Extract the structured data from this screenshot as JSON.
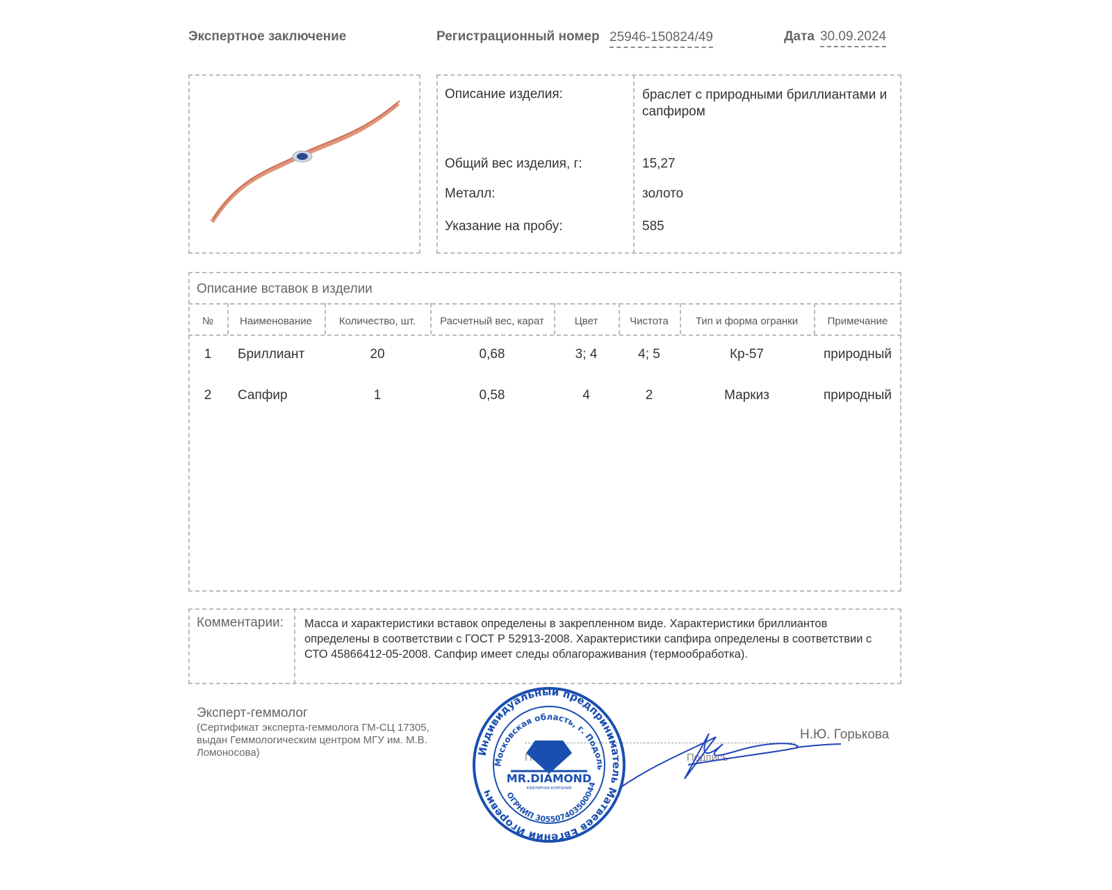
{
  "header": {
    "title": "Экспертное заключение",
    "reg_label": "Регистрационный номер",
    "reg_value": "25946-150824/49",
    "date_label": "Дата",
    "date_value": "30.09.2024"
  },
  "item": {
    "description_label": "Описание изделия:",
    "description_value": "браслет с природными бриллиантами и сапфиром",
    "weight_label": "Общий вес изделия, г:",
    "weight_value": "15,27",
    "metal_label": "Металл:",
    "metal_value": "золото",
    "assay_label": "Указание на пробу:",
    "assay_value": "585",
    "image": "bracelet-photo"
  },
  "inserts": {
    "title": "Описание вставок в изделии",
    "columns": [
      "№",
      "Наименование",
      "Количество, шт.",
      "Расчетный вес, карат",
      "Цвет",
      "Чистота",
      "Тип и форма огранки",
      "Примечание"
    ],
    "rows": [
      [
        "1",
        "Бриллиант",
        "20",
        "0,68",
        "3; 4",
        "4; 5",
        "Кр-57",
        "природный"
      ],
      [
        "2",
        "Сапфир",
        "1",
        "0,58",
        "4",
        "2",
        "Маркиз",
        "природный"
      ]
    ]
  },
  "comments": {
    "label": "Комментарии:",
    "text": "Масса и характеристики вставок определены в закрепленном виде. Характеристики бриллиантов определены в соответствии с ГОСТ Р 52913-2008. Характеристики сапфира определены в соответствии с СТО 45866412-05-2008. Сапфир имеет следы облагораживания (термообработка)."
  },
  "footer": {
    "expert_title": "Эксперт-геммолог",
    "expert_cert": "(Сертификат эксперта-геммолога ГМ-СЦ 17305, выдан Геммологическим центром МГУ им. М.В. Ломоносова)",
    "stamp_label": "Печать",
    "signature_label": "Подпись",
    "signer": "Н.Ю. Горькова"
  },
  "stamp": {
    "outer_text": "Индивидуальный предприниматель Матвеев Евгений Игоревич",
    "inner_text": "Московская область, г. Подольск",
    "ogrnip": "ОГРНИП 305507403500044",
    "brand": "MR.DIAMOND",
    "brand_sub": "ЮВЕЛИРНАЯ КОМПАНИЯ",
    "color": "#1a4fb0"
  }
}
